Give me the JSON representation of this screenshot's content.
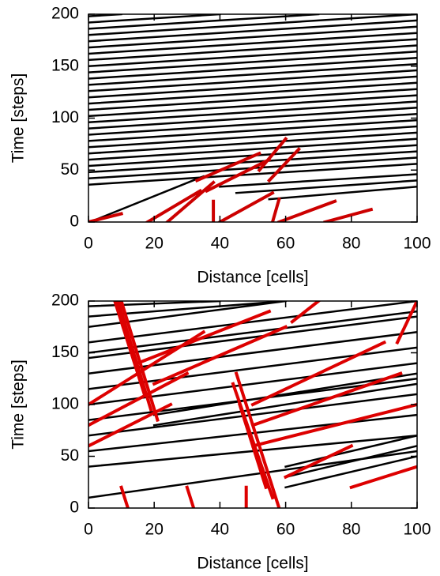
{
  "chart_data": [
    {
      "type": "line",
      "xlabel": "Distance [cells]",
      "ylabel": "Time [steps]",
      "xlim": [
        0,
        100
      ],
      "ylim": [
        0,
        200
      ],
      "xticks": [
        0,
        20,
        40,
        60,
        80,
        100
      ],
      "yticks": [
        0,
        50,
        100,
        150,
        200
      ],
      "series": [
        {
          "color": "#000000",
          "x": [
            0,
            100,
            null,
            0,
            100,
            null,
            0,
            100,
            null,
            0,
            100,
            null,
            0,
            100,
            null,
            0,
            100,
            null,
            0,
            100,
            null,
            0,
            100,
            null,
            0,
            100,
            null,
            0,
            100,
            null,
            0,
            100,
            null,
            0,
            100,
            null,
            0,
            100,
            null,
            0,
            100,
            null,
            0,
            100,
            null,
            0,
            100,
            null,
            0,
            100,
            null,
            0,
            100,
            null,
            0,
            100,
            null,
            0,
            100,
            null,
            0,
            100,
            null,
            0,
            100,
            null,
            0,
            100,
            null,
            0,
            100,
            null,
            0,
            100,
            null,
            0,
            70,
            null,
            0,
            40,
            null,
            0,
            10,
            null,
            2,
            35,
            null,
            40,
            100,
            null,
            45,
            100,
            null,
            55,
            100
          ],
          "y": [
            36,
            56,
            null,
            42,
            62,
            null,
            48,
            68,
            null,
            54,
            74,
            null,
            60,
            80,
            null,
            66,
            86,
            null,
            72,
            92,
            null,
            78,
            98,
            null,
            84,
            104,
            null,
            90,
            110,
            null,
            96,
            116,
            null,
            102,
            122,
            null,
            108,
            128,
            null,
            114,
            134,
            null,
            120,
            140,
            null,
            126,
            146,
            null,
            132,
            152,
            null,
            138,
            158,
            null,
            144,
            164,
            null,
            150,
            170,
            null,
            156,
            176,
            null,
            162,
            182,
            null,
            168,
            188,
            null,
            174,
            194,
            null,
            180,
            200,
            null,
            186,
            200,
            null,
            192,
            200,
            null,
            198,
            200,
            null,
            2,
            44,
            null,
            34,
            46,
            null,
            28,
            40,
            null,
            22,
            34
          ]
        },
        {
          "color": "#cc0000",
          "x": [
            0,
            10,
            null,
            18,
            34,
            null,
            24,
            38,
            null,
            38,
            38,
            null,
            40,
            56,
            null,
            56,
            58,
            null,
            58,
            75,
            null,
            72,
            86,
            null,
            33,
            52,
            null,
            36,
            55,
            null,
            52,
            60,
            null,
            55,
            64
          ],
          "y": [
            0,
            8,
            null,
            0,
            30,
            null,
            0,
            38,
            null,
            0,
            20,
            null,
            0,
            28,
            null,
            0,
            22,
            null,
            0,
            20,
            null,
            0,
            12,
            null,
            40,
            66,
            null,
            30,
            60,
            null,
            50,
            80,
            null,
            40,
            70
          ]
        }
      ]
    },
    {
      "type": "line",
      "xlabel": "Distance [cells]",
      "ylabel": "Time [steps]",
      "xlim": [
        0,
        100
      ],
      "ylim": [
        0,
        200
      ],
      "xticks": [
        0,
        20,
        40,
        60,
        80,
        100
      ],
      "yticks": [
        0,
        50,
        100,
        150,
        200
      ],
      "series": [
        {
          "color": "#000000",
          "x": [
            0,
            100,
            null,
            0,
            100,
            null,
            0,
            100,
            null,
            0,
            100,
            null,
            0,
            100,
            null,
            0,
            100,
            null,
            0,
            100,
            null,
            0,
            100,
            null,
            0,
            100,
            null,
            0,
            100,
            null,
            0,
            100,
            null,
            20,
            100,
            null,
            20,
            100,
            null,
            60,
            100,
            null,
            60,
            100,
            null,
            60,
            100,
            null,
            0,
            60,
            null,
            0,
            60,
            null,
            0,
            40
          ],
          "y": [
            40,
            70,
            null,
            55,
            90,
            null,
            70,
            110,
            null,
            85,
            125,
            null,
            100,
            140,
            null,
            115,
            155,
            null,
            130,
            170,
            null,
            145,
            185,
            null,
            160,
            200,
            null,
            150,
            190,
            null,
            10,
            55,
            null,
            80,
            120,
            null,
            90,
            130,
            null,
            20,
            50,
            null,
            30,
            60,
            null,
            40,
            70,
            null,
            175,
            200,
            null,
            185,
            200,
            null,
            195,
            200
          ]
        },
        {
          "color": "#dd0000",
          "x": [
            21,
            10,
            null,
            19,
            9,
            null,
            17,
            8,
            null,
            58,
            45,
            null,
            56,
            44,
            null,
            54,
            46,
            null,
            12,
            10,
            null,
            32,
            30,
            null,
            48,
            48,
            null,
            0,
            30,
            null,
            0,
            25,
            null,
            0,
            35,
            null,
            50,
            100,
            null,
            50,
            95,
            null,
            50,
            90,
            null,
            60,
            80,
            null,
            80,
            100,
            null,
            62,
            70,
            null,
            94,
            100,
            null,
            15,
            55,
            null,
            20,
            60
          ],
          "y": [
            85,
            200,
            null,
            95,
            200,
            null,
            110,
            200,
            null,
            0,
            130,
            null,
            10,
            120,
            null,
            20,
            100,
            null,
            0,
            20,
            null,
            0,
            20,
            null,
            0,
            20,
            null,
            80,
            130,
            null,
            60,
            100,
            null,
            100,
            170,
            null,
            60,
            100,
            null,
            80,
            130,
            null,
            100,
            160,
            null,
            30,
            60,
            null,
            20,
            40,
            null,
            180,
            200,
            null,
            160,
            200,
            null,
            140,
            190,
            null,
            120,
            175
          ]
        }
      ]
    }
  ]
}
